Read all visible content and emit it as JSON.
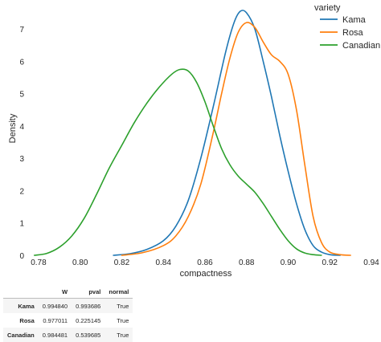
{
  "chart_data": {
    "type": "line",
    "title": "",
    "xlabel": "compactness",
    "ylabel": "Density",
    "xlim": [
      0.775,
      0.94
    ],
    "ylim": [
      0,
      7.7
    ],
    "xticks": [
      "0.78",
      "0.80",
      "0.82",
      "0.84",
      "0.86",
      "0.88",
      "0.90",
      "0.92",
      "0.94"
    ],
    "yticks": [
      "0",
      "1",
      "2",
      "3",
      "4",
      "5",
      "6",
      "7"
    ],
    "grid": false,
    "legend": {
      "title": "variety",
      "placement": "top-right"
    },
    "series": [
      {
        "name": "Kama",
        "color": "#1f77b4",
        "x": [
          0.816,
          0.824,
          0.832,
          0.84,
          0.846,
          0.852,
          0.858,
          0.864,
          0.87,
          0.874,
          0.877,
          0.88,
          0.884,
          0.888,
          0.892,
          0.896,
          0.9,
          0.904,
          0.908,
          0.912,
          0.916,
          0.92,
          0.925
        ],
        "y": [
          0.0,
          0.05,
          0.18,
          0.45,
          0.9,
          1.7,
          3.0,
          4.6,
          6.3,
          7.2,
          7.55,
          7.5,
          7.0,
          6.0,
          4.9,
          3.7,
          2.6,
          1.6,
          0.8,
          0.3,
          0.1,
          0.02,
          0.0
        ]
      },
      {
        "name": "Rosa",
        "color": "#ff7f0e",
        "x": [
          0.82,
          0.83,
          0.84,
          0.846,
          0.852,
          0.858,
          0.864,
          0.868,
          0.872,
          0.876,
          0.88,
          0.884,
          0.888,
          0.892,
          0.896,
          0.9,
          0.904,
          0.908,
          0.912,
          0.916,
          0.92,
          0.925,
          0.93
        ],
        "y": [
          0.0,
          0.08,
          0.3,
          0.6,
          1.2,
          2.2,
          3.8,
          5.0,
          6.1,
          6.9,
          7.2,
          7.05,
          6.6,
          6.2,
          6.0,
          5.6,
          4.5,
          2.8,
          1.2,
          0.4,
          0.1,
          0.02,
          0.0
        ]
      },
      {
        "name": "Canadian",
        "color": "#2ca02c",
        "x": [
          0.778,
          0.784,
          0.79,
          0.796,
          0.802,
          0.808,
          0.814,
          0.82,
          0.826,
          0.832,
          0.838,
          0.844,
          0.848,
          0.852,
          0.856,
          0.86,
          0.864,
          0.868,
          0.872,
          0.876,
          0.88,
          0.884,
          0.888,
          0.892,
          0.896,
          0.9,
          0.904,
          0.908,
          0.912,
          0.916
        ],
        "y": [
          0.0,
          0.06,
          0.25,
          0.6,
          1.15,
          1.9,
          2.7,
          3.4,
          4.1,
          4.7,
          5.2,
          5.6,
          5.75,
          5.7,
          5.35,
          4.75,
          4.0,
          3.3,
          2.8,
          2.45,
          2.2,
          1.95,
          1.6,
          1.2,
          0.8,
          0.45,
          0.2,
          0.07,
          0.02,
          0.0
        ]
      }
    ]
  },
  "stats_table": {
    "columns": [
      "",
      "W",
      "pval",
      "normal"
    ],
    "rows": [
      {
        "label": "Kama",
        "W": "0.994840",
        "pval": "0.993686",
        "normal": "True"
      },
      {
        "label": "Rosa",
        "W": "0.977011",
        "pval": "0.225145",
        "normal": "True"
      },
      {
        "label": "Canadian",
        "W": "0.984481",
        "pval": "0.539685",
        "normal": "True"
      }
    ]
  }
}
